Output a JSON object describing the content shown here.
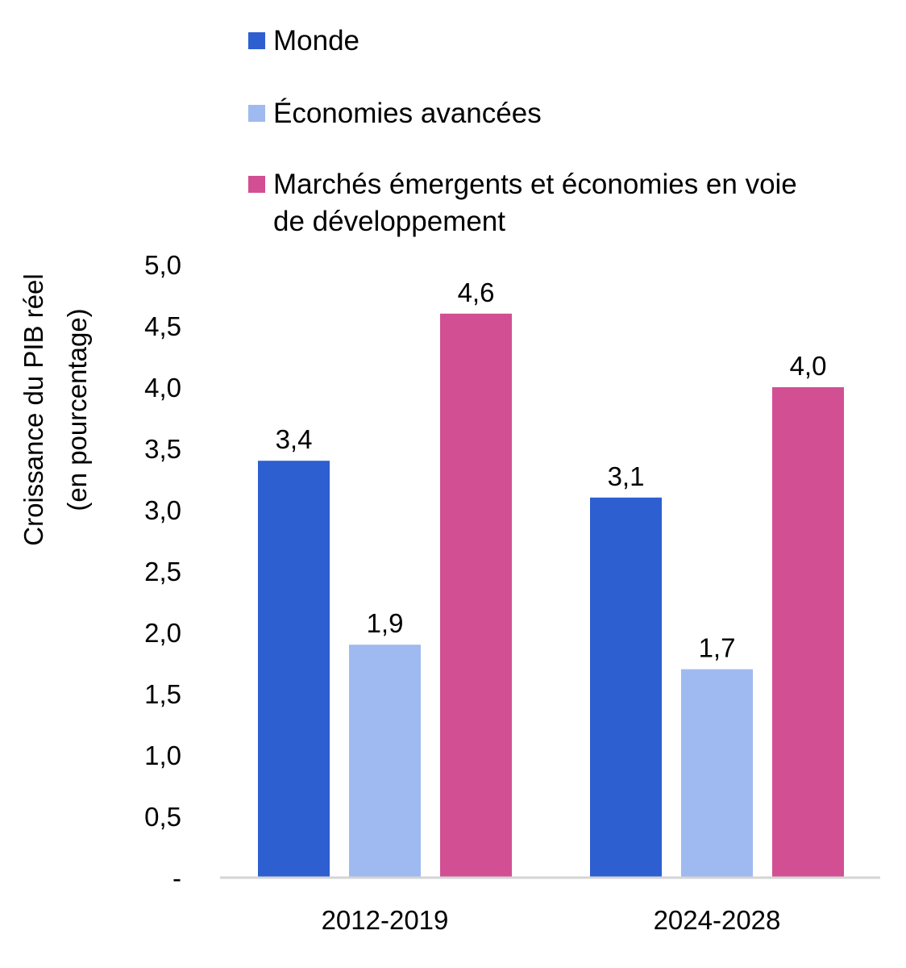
{
  "chart_data": {
    "type": "bar",
    "categories": [
      "2012-2019",
      "2024-2028"
    ],
    "series": [
      {
        "name": "Monde",
        "values": [
          3.4,
          3.1
        ],
        "color": "#2d5fd1",
        "labels": [
          "3,4",
          "3,1"
        ]
      },
      {
        "name": "Économies avancées",
        "values": [
          1.9,
          1.7
        ],
        "color": "#9fbaf0",
        "labels": [
          "1,9",
          "1,7"
        ]
      },
      {
        "name": "Marchés émergents et économies en voie de développement",
        "values": [
          4.6,
          4.0
        ],
        "color": "#d24f93",
        "labels": [
          "4,6",
          "4,0"
        ]
      }
    ],
    "ylabel_line1": "Croissance du PIB réel",
    "ylabel_line2": "(en pourcentage)",
    "ylim": [
      0,
      5
    ],
    "yticks": [
      0,
      0.5,
      1.0,
      1.5,
      2.0,
      2.5,
      3.0,
      3.5,
      4.0,
      4.5,
      5.0
    ],
    "ytick_labels": [
      "-",
      "0,5",
      "1,0",
      "1,5",
      "2,0",
      "2,5",
      "3,0",
      "3,5",
      "4,0",
      "4,5",
      "5,0"
    ],
    "grid": false,
    "legend_position": "top"
  }
}
